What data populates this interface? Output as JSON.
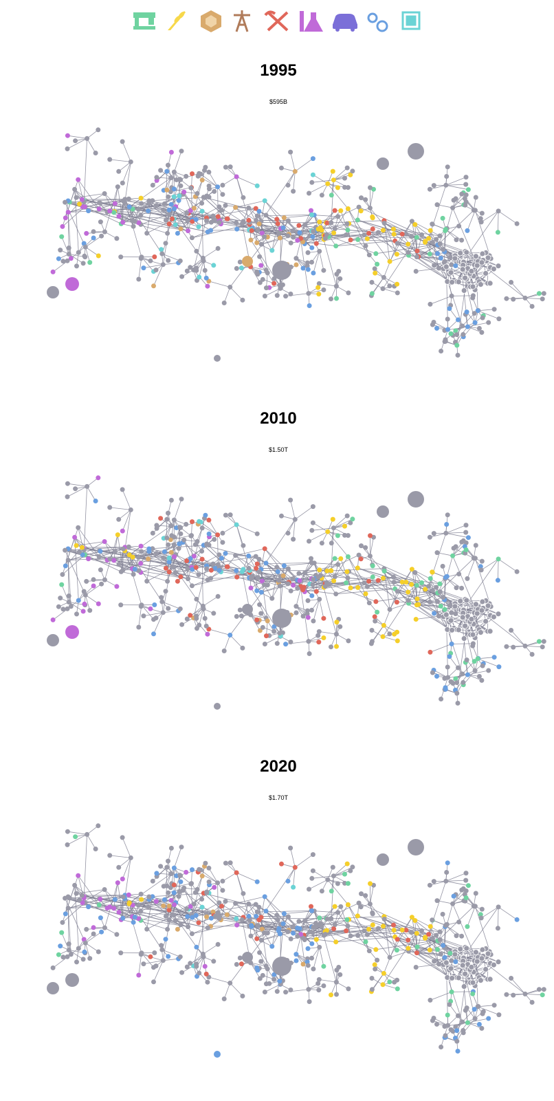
{
  "panels": [
    {
      "title": "1995",
      "subtitle": "$595B"
    },
    {
      "title": "2010",
      "subtitle": "$1.50T"
    },
    {
      "title": "2020",
      "subtitle": "$1.70T"
    }
  ]
}
